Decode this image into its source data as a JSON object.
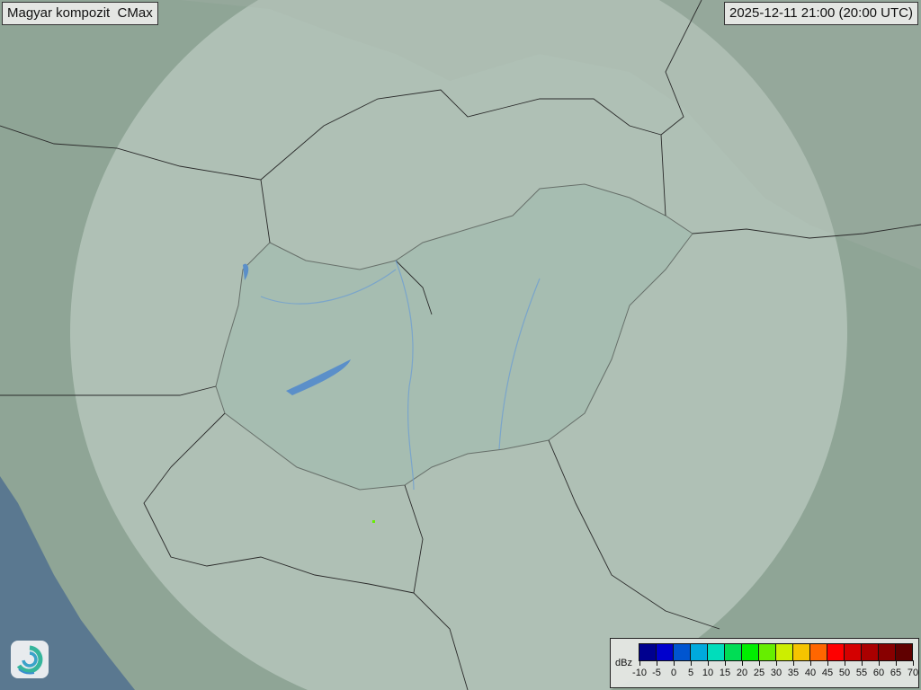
{
  "title": "Magyar kompozit  CMax",
  "timestamp": "2025-12-11 21:00 (20:00 UTC)",
  "legend": {
    "unit": "dBz",
    "ticks": [
      "-10",
      "-5",
      "0",
      "5",
      "10",
      "15",
      "20",
      "25",
      "30",
      "35",
      "40",
      "45",
      "50",
      "55",
      "60",
      "65",
      "70"
    ],
    "colors": [
      "#00008f",
      "#0000cd",
      "#0055d0",
      "#00aadd",
      "#00ddbb",
      "#00dd55",
      "#00ee00",
      "#66ee00",
      "#ccee00",
      "#f5c400",
      "#ff6600",
      "#ff0000",
      "#d40000",
      "#aa0000",
      "#880000",
      "#600000"
    ]
  },
  "map": {
    "terrain_color": "#8fa596",
    "coverage_color": "#d6e2dc",
    "sea_color": "#5a7890",
    "lake_color": "#5b8fc9",
    "echo_color": "#66ee00"
  },
  "logo": {
    "icon": "swirl-logo-icon"
  }
}
